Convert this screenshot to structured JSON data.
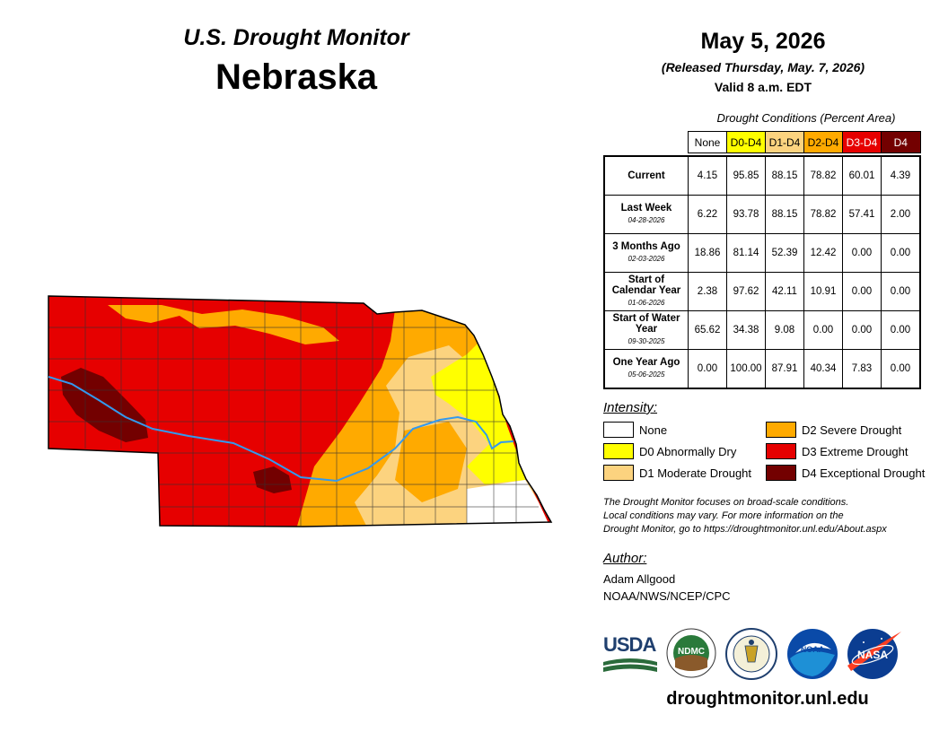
{
  "header": {
    "monitor_title": "U.S. Drought Monitor",
    "state_name": "Nebraska",
    "map_date": "May 5, 2026",
    "released": "(Released Thursday, May. 7, 2026)",
    "valid": "Valid 8 a.m. EDT"
  },
  "table": {
    "caption": "Drought Conditions (Percent Area)",
    "columns": [
      "None",
      "D0-D4",
      "D1-D4",
      "D2-D4",
      "D3-D4",
      "D4"
    ],
    "column_colors": [
      "#ffffff",
      "#ffff00",
      "#fcd37f",
      "#ffaa00",
      "#e60000",
      "#730000"
    ],
    "rows": [
      {
        "label": "Current",
        "date": "",
        "values": [
          "4.15",
          "95.85",
          "88.15",
          "78.82",
          "60.01",
          "4.39"
        ]
      },
      {
        "label": "Last Week",
        "date": "04-28-2026",
        "values": [
          "6.22",
          "93.78",
          "88.15",
          "78.82",
          "57.41",
          "2.00"
        ]
      },
      {
        "label": "3 Months Ago",
        "date": "02-03-2026",
        "values": [
          "18.86",
          "81.14",
          "52.39",
          "12.42",
          "0.00",
          "0.00"
        ]
      },
      {
        "label": "Start of Calendar Year",
        "date": "01-06-2026",
        "values": [
          "2.38",
          "97.62",
          "42.11",
          "10.91",
          "0.00",
          "0.00"
        ]
      },
      {
        "label": "Start of Water Year",
        "date": "09-30-2025",
        "values": [
          "65.62",
          "34.38",
          "9.08",
          "0.00",
          "0.00",
          "0.00"
        ]
      },
      {
        "label": "One Year Ago",
        "date": "05-06-2025",
        "values": [
          "0.00",
          "100.00",
          "87.91",
          "40.34",
          "7.83",
          "0.00"
        ]
      }
    ]
  },
  "legend": {
    "title": "Intensity:",
    "items": [
      {
        "label": "None",
        "color": "#ffffff"
      },
      {
        "label": "D0 Abnormally Dry",
        "color": "#ffff00"
      },
      {
        "label": "D1 Moderate Drought",
        "color": "#fcd37f"
      },
      {
        "label": "D2 Severe Drought",
        "color": "#ffaa00"
      },
      {
        "label": "D3 Extreme Drought",
        "color": "#e60000"
      },
      {
        "label": "D4 Exceptional Drought",
        "color": "#730000"
      }
    ]
  },
  "note": {
    "line1": "The Drought Monitor focuses on broad-scale conditions.",
    "line2": "Local conditions may vary. For more information on the",
    "line3": "Drought Monitor, go to https://droughtmonitor.unl.edu/About.aspx"
  },
  "author": {
    "label": "Author:",
    "name": "Adam Allgood",
    "org": "NOAA/NWS/NCEP/CPC"
  },
  "logos": {
    "usda": "USDA",
    "ndmc": "NDMC",
    "noaa": "NOAA",
    "nasa": "NASA"
  },
  "site_url": "droughtmonitor.unl.edu"
}
